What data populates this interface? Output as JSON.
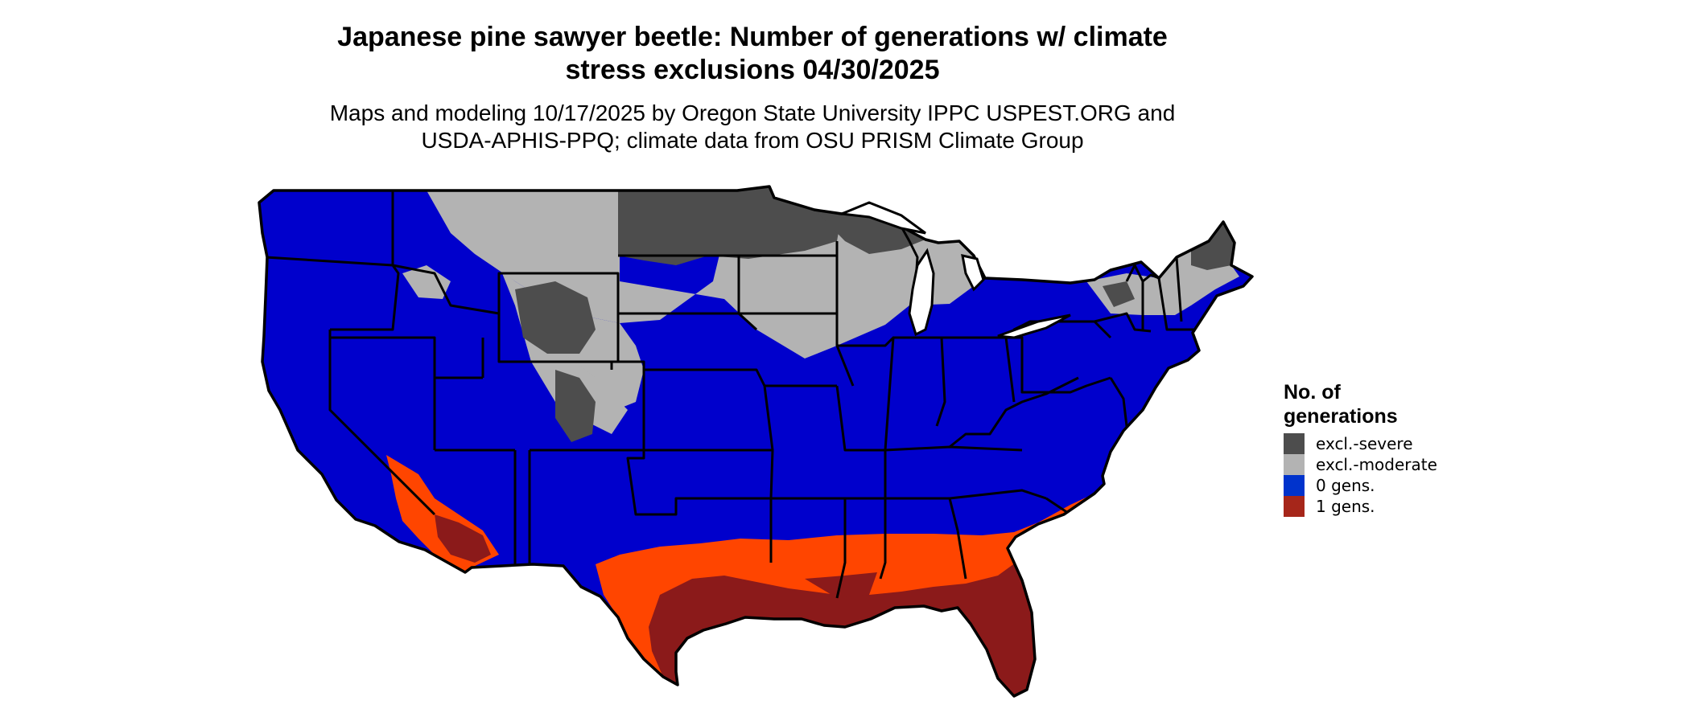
{
  "title_line1": "Japanese pine sawyer beetle: Number of generations w/ climate",
  "title_line2": "stress exclusions 04/30/2025",
  "subtitle_line1": "Maps and modeling 10/17/2025 by Oregon State University IPPC USPEST.ORG and",
  "subtitle_line2": "USDA-APHIS-PPQ; climate data from OSU PRISM Climate Group",
  "legend": {
    "title_line1": "No. of",
    "title_line2": "generations",
    "items": [
      {
        "label": "excl.-severe",
        "color": "#4d4d4d"
      },
      {
        "label": "excl.-moderate",
        "color": "#b3b3b3"
      },
      {
        "label": "0 gens.",
        "color": "#0033cc"
      },
      {
        "label": "1 gens.",
        "color": "#a6261a"
      }
    ]
  },
  "map_colors": {
    "zero_gens": "#0000cc",
    "excl_severe": "#4d4d4d",
    "excl_moderate": "#b3b3b3",
    "one_gen_dark": "#8b1a1a",
    "one_gen_orange": "#ff4500",
    "one_gen_mid": "#d4330f",
    "state_border": "#000000",
    "background": "#ffffff"
  }
}
